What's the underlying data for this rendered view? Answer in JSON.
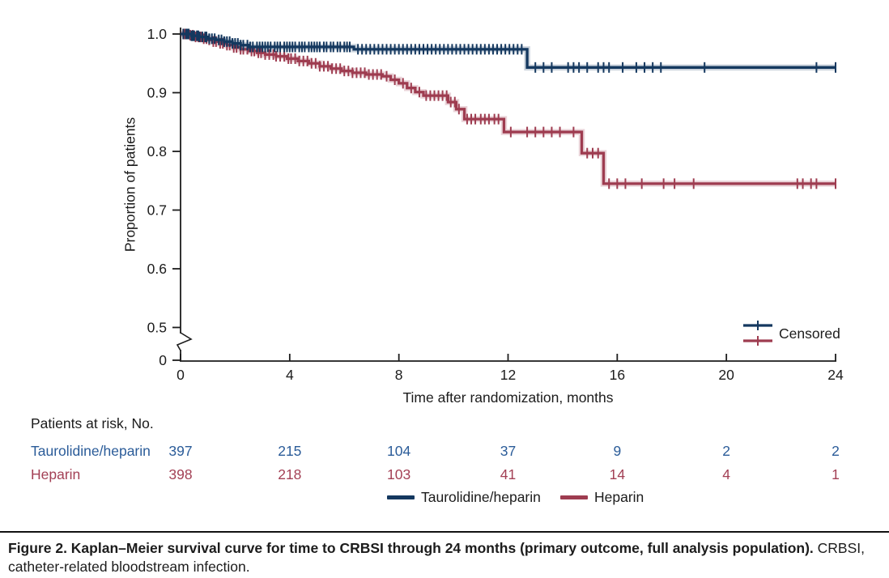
{
  "figure": {
    "caption_bold": "Figure 2. Kaplan–Meier survival curve for time to CRBSI through 24 months (primary outcome, full analysis population).",
    "caption_regular": " CRBSI, catheter-related bloodstream infection."
  },
  "chart_data": {
    "type": "line",
    "subtype": "kaplan-meier-step",
    "xlabel": "Time after randomization, months",
    "ylabel": "Proportion of patients",
    "xlim": [
      0,
      24
    ],
    "ylim_main": [
      0.5,
      1.0
    ],
    "y_axis_break": true,
    "grid": false,
    "x_ticks": [
      0,
      4,
      8,
      12,
      16,
      20,
      24
    ],
    "y_ticks": [
      {
        "label": "1.0",
        "value": 1.0
      },
      {
        "label": "0.9",
        "value": 0.9
      },
      {
        "label": "0.8",
        "value": 0.8
      },
      {
        "label": "0.7",
        "value": 0.7
      },
      {
        "label": "0.6",
        "value": 0.6
      },
      {
        "label": "0.5",
        "value": 0.5
      },
      {
        "label": "0",
        "value": 0
      }
    ],
    "censored_legend_label": "Censored",
    "series": [
      {
        "name": "Taurolidine/heparin",
        "color": "#14385f",
        "text_color": "#2b5c99",
        "steps": [
          [
            0,
            1.0
          ],
          [
            0.4,
            0.997
          ],
          [
            0.7,
            0.995
          ],
          [
            1.0,
            0.992
          ],
          [
            1.3,
            0.99
          ],
          [
            1.6,
            0.987
          ],
          [
            1.9,
            0.984
          ],
          [
            2.2,
            0.981
          ],
          [
            2.5,
            0.978
          ],
          [
            6.35,
            0.974
          ],
          [
            12.7,
            0.943
          ]
        ],
        "end_time": 24,
        "censor_times": [
          0.1,
          0.2,
          0.25,
          0.3,
          0.4,
          0.45,
          0.5,
          0.6,
          0.65,
          0.7,
          0.8,
          0.9,
          0.95,
          1.05,
          1.15,
          1.25,
          1.4,
          1.5,
          1.6,
          1.7,
          1.8,
          1.9,
          2.0,
          2.1,
          2.2,
          2.3,
          2.45,
          2.55,
          2.65,
          2.8,
          2.9,
          3.0,
          3.1,
          3.2,
          3.3,
          3.45,
          3.55,
          3.65,
          3.8,
          3.9,
          4.0,
          4.1,
          4.2,
          4.35,
          4.45,
          4.55,
          4.7,
          4.8,
          4.9,
          5.0,
          5.1,
          5.25,
          5.35,
          5.5,
          5.6,
          5.75,
          5.85,
          6.0,
          6.1,
          6.2,
          6.5,
          6.65,
          6.8,
          6.95,
          7.1,
          7.25,
          7.4,
          7.55,
          7.7,
          7.85,
          8.0,
          8.15,
          8.3,
          8.45,
          8.6,
          8.75,
          8.9,
          9.05,
          9.2,
          9.35,
          9.5,
          9.65,
          9.8,
          9.95,
          10.1,
          10.25,
          10.4,
          10.55,
          10.7,
          10.85,
          11.0,
          11.15,
          11.3,
          11.45,
          11.6,
          11.75,
          11.9,
          12.05,
          12.2,
          12.35,
          12.5,
          13.0,
          13.3,
          13.6,
          14.2,
          14.4,
          14.6,
          14.9,
          15.3,
          15.5,
          15.7,
          16.2,
          16.7,
          17.0,
          17.3,
          17.6,
          19.2,
          23.3,
          24
        ]
      },
      {
        "name": "Heparin",
        "color": "#9e3c50",
        "text_color": "#a34055",
        "steps": [
          [
            0,
            1.0
          ],
          [
            0.3,
            0.998
          ],
          [
            0.55,
            0.995
          ],
          [
            0.8,
            0.992
          ],
          [
            1.0,
            0.99
          ],
          [
            1.2,
            0.987
          ],
          [
            1.45,
            0.984
          ],
          [
            1.7,
            0.981
          ],
          [
            1.95,
            0.977
          ],
          [
            2.2,
            0.974
          ],
          [
            2.5,
            0.971
          ],
          [
            2.8,
            0.968
          ],
          [
            3.1,
            0.965
          ],
          [
            3.5,
            0.962
          ],
          [
            3.9,
            0.958
          ],
          [
            4.3,
            0.954
          ],
          [
            4.7,
            0.95
          ],
          [
            5.1,
            0.945
          ],
          [
            5.5,
            0.941
          ],
          [
            5.9,
            0.937
          ],
          [
            6.3,
            0.934
          ],
          [
            6.8,
            0.931
          ],
          [
            7.4,
            0.928
          ],
          [
            7.7,
            0.922
          ],
          [
            8.0,
            0.916
          ],
          [
            8.3,
            0.908
          ],
          [
            8.6,
            0.901
          ],
          [
            8.9,
            0.895
          ],
          [
            9.8,
            0.884
          ],
          [
            10.1,
            0.872
          ],
          [
            10.4,
            0.855
          ],
          [
            11.85,
            0.833
          ],
          [
            14.7,
            0.797
          ],
          [
            15.5,
            0.745
          ]
        ],
        "end_time": 24,
        "censor_times": [
          0.1,
          0.15,
          0.25,
          0.35,
          0.45,
          0.55,
          0.65,
          0.75,
          0.85,
          0.95,
          1.05,
          1.2,
          1.3,
          1.45,
          1.55,
          1.7,
          1.8,
          1.95,
          2.05,
          2.2,
          2.3,
          2.45,
          2.6,
          2.7,
          2.85,
          2.95,
          3.1,
          3.25,
          3.4,
          3.5,
          3.65,
          3.8,
          3.95,
          4.05,
          4.2,
          4.35,
          4.5,
          4.65,
          4.8,
          4.95,
          5.1,
          5.25,
          5.4,
          5.55,
          5.7,
          5.85,
          6.0,
          6.15,
          6.3,
          6.45,
          6.6,
          6.75,
          6.9,
          7.05,
          7.2,
          7.35,
          7.55,
          7.85,
          8.15,
          8.45,
          8.75,
          9.0,
          9.15,
          9.3,
          9.45,
          9.6,
          9.75,
          9.9,
          10.05,
          10.2,
          10.5,
          10.65,
          10.8,
          11.0,
          11.15,
          11.3,
          11.5,
          11.65,
          12.1,
          12.7,
          13.0,
          13.3,
          13.6,
          13.9,
          14.4,
          14.9,
          15.1,
          15.3,
          15.7,
          16.0,
          16.3,
          16.9,
          17.7,
          18.1,
          18.8,
          22.6,
          22.8,
          23.1,
          23.3,
          24
        ]
      }
    ],
    "risk_table": {
      "title": "Patients at risk, No.",
      "times": [
        0,
        4,
        8,
        12,
        16,
        20,
        24
      ],
      "rows": [
        {
          "name": "Taurolidine/heparin",
          "counts": [
            397,
            215,
            104,
            37,
            9,
            2,
            2
          ]
        },
        {
          "name": "Heparin",
          "counts": [
            398,
            218,
            103,
            41,
            14,
            4,
            1
          ]
        }
      ]
    }
  }
}
